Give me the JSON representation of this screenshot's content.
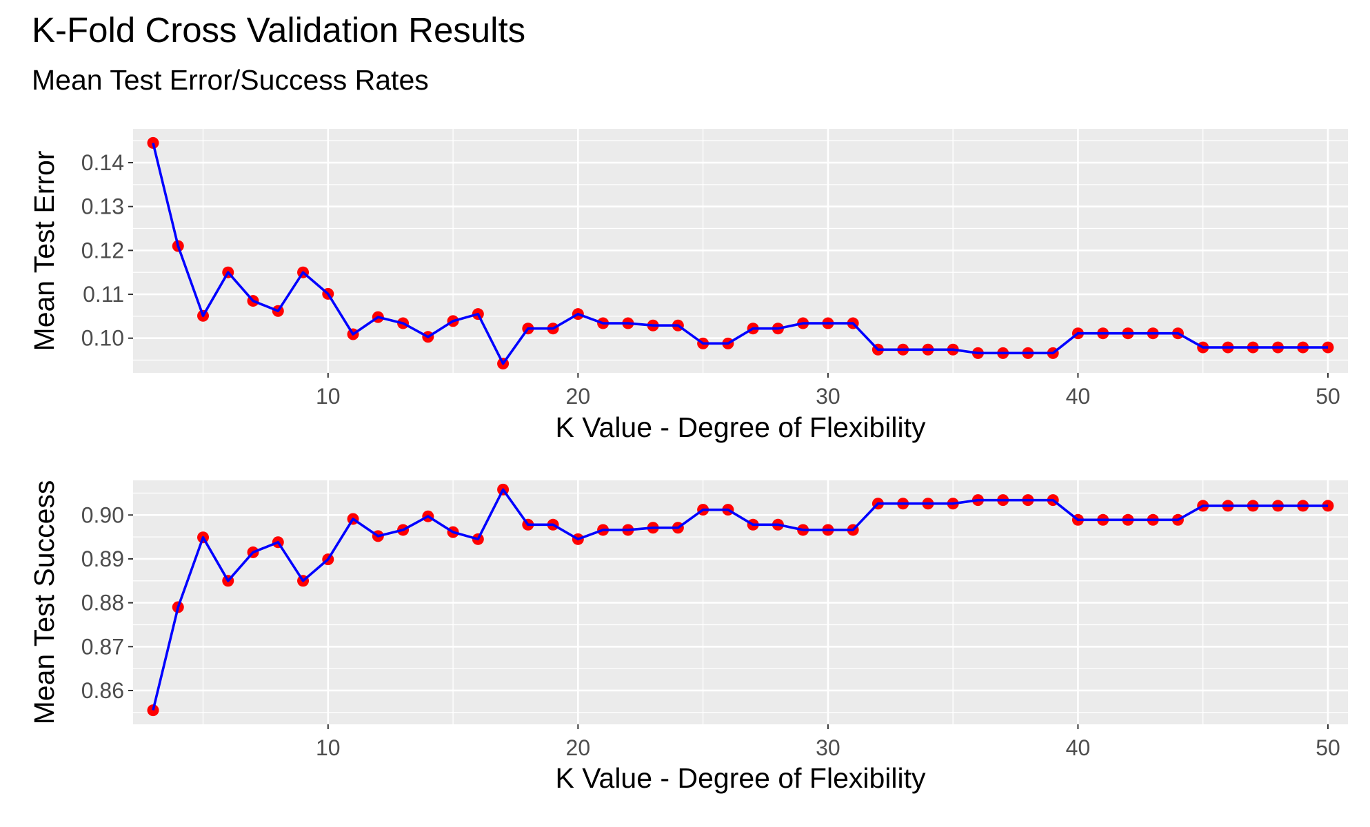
{
  "title": "K-Fold Cross Validation Results",
  "subtitle": "Mean Test Error/Success Rates",
  "colors": {
    "points": "#ff0000",
    "line": "#0000ff",
    "panel": "#ebebeb",
    "grid": "#ffffff",
    "tick_text": "#4d4d4d"
  },
  "chart_data": [
    {
      "type": "line",
      "xlabel": "K Value - Degree of Flexibility",
      "ylabel": "Mean Test Error",
      "xlim": [
        2.2,
        50.8
      ],
      "ylim": [
        0.0921,
        0.1477
      ],
      "xticks": [
        10,
        20,
        30,
        40,
        50
      ],
      "yticks": [
        0.1,
        0.11,
        0.12,
        0.13,
        0.14
      ],
      "ytick_labels": [
        "0.10",
        "0.11",
        "0.12",
        "0.13",
        "0.14"
      ],
      "grid": true,
      "series": [
        {
          "markers": true,
          "x": [
            3,
            4,
            5,
            6,
            7,
            8,
            9,
            10,
            11,
            12,
            13,
            14,
            15,
            16,
            17,
            18,
            19,
            20,
            21,
            22,
            23,
            24,
            25,
            26,
            27,
            28,
            29,
            30,
            31,
            32,
            33,
            34,
            35,
            36,
            37,
            38,
            39,
            40,
            41,
            42,
            43,
            44,
            45,
            46,
            47,
            48,
            49,
            50
          ],
          "values": [
            0.1445,
            0.121,
            0.1051,
            0.115,
            0.1085,
            0.1062,
            0.115,
            0.1101,
            0.1009,
            0.1048,
            0.1034,
            0.1003,
            0.1039,
            0.1055,
            0.0942,
            0.1022,
            0.1022,
            0.1055,
            0.1034,
            0.1034,
            0.1029,
            0.1029,
            0.0988,
            0.0988,
            0.1022,
            0.1022,
            0.1034,
            0.1034,
            0.1034,
            0.0974,
            0.0974,
            0.0974,
            0.0974,
            0.0966,
            0.0966,
            0.0966,
            0.0966,
            0.1011,
            0.1011,
            0.1011,
            0.1011,
            0.1011,
            0.0979,
            0.0979,
            0.0979,
            0.0979,
            0.0979,
            0.0979
          ]
        }
      ]
    },
    {
      "type": "line",
      "xlabel": "K Value - Degree of Flexibility",
      "ylabel": "Mean Test Success",
      "xlim": [
        2.2,
        50.8
      ],
      "ylim": [
        0.8523,
        0.9079
      ],
      "xticks": [
        10,
        20,
        30,
        40,
        50
      ],
      "yticks": [
        0.86,
        0.87,
        0.88,
        0.89,
        0.9
      ],
      "ytick_labels": [
        "0.86",
        "0.87",
        "0.88",
        "0.89",
        "0.90"
      ],
      "grid": true,
      "series": [
        {
          "markers": true,
          "x": [
            3,
            4,
            5,
            6,
            7,
            8,
            9,
            10,
            11,
            12,
            13,
            14,
            15,
            16,
            17,
            18,
            19,
            20,
            21,
            22,
            23,
            24,
            25,
            26,
            27,
            28,
            29,
            30,
            31,
            32,
            33,
            34,
            35,
            36,
            37,
            38,
            39,
            40,
            41,
            42,
            43,
            44,
            45,
            46,
            47,
            48,
            49,
            50
          ],
          "values": [
            0.8555,
            0.879,
            0.8949,
            0.885,
            0.8915,
            0.8938,
            0.885,
            0.8899,
            0.8991,
            0.8952,
            0.8966,
            0.8997,
            0.8961,
            0.8945,
            0.9058,
            0.8978,
            0.8978,
            0.8945,
            0.8966,
            0.8966,
            0.8971,
            0.8971,
            0.9012,
            0.9012,
            0.8978,
            0.8978,
            0.8966,
            0.8966,
            0.8966,
            0.9026,
            0.9026,
            0.9026,
            0.9026,
            0.9034,
            0.9034,
            0.9034,
            0.9034,
            0.8989,
            0.8989,
            0.8989,
            0.8989,
            0.8989,
            0.9021,
            0.9021,
            0.9021,
            0.9021,
            0.9021,
            0.9021
          ]
        }
      ]
    }
  ]
}
